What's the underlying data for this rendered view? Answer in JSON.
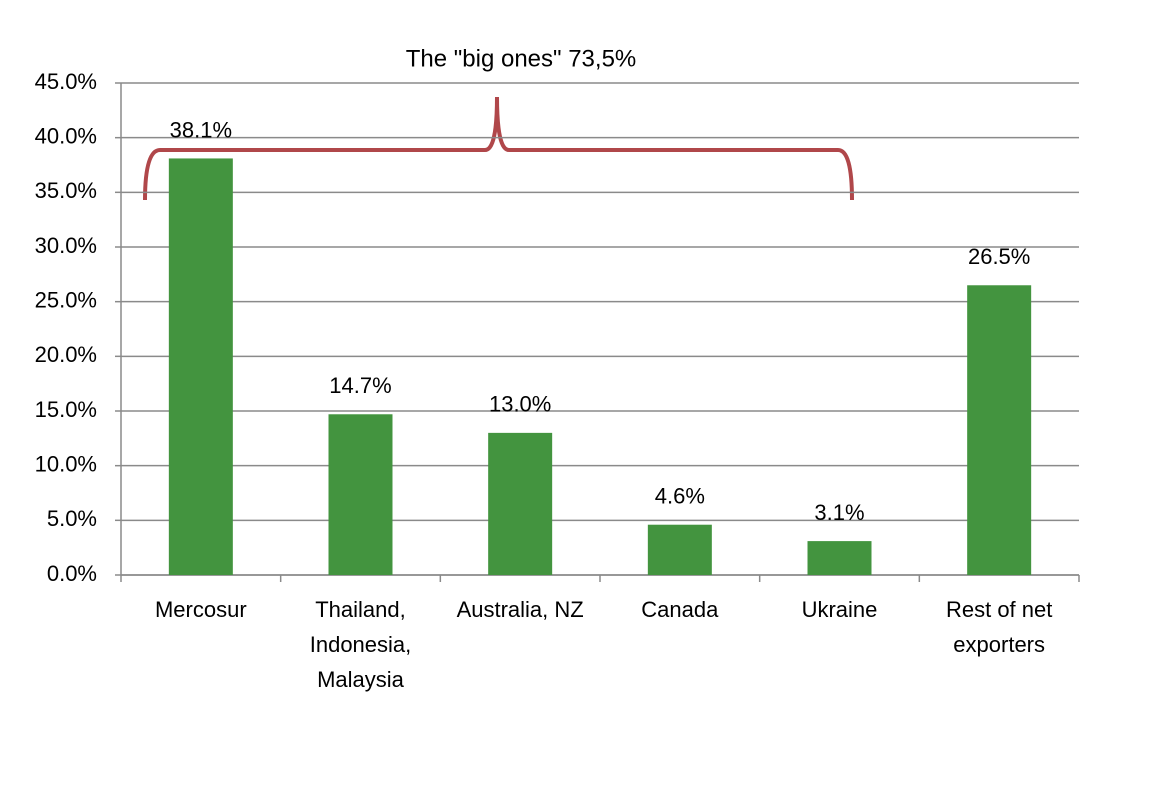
{
  "chart_data": {
    "type": "bar",
    "annotation": "The \"big ones\" 73,5%",
    "categories": [
      [
        "Mercosur"
      ],
      [
        "Thailand,",
        "Indonesia,",
        "Malaysia"
      ],
      [
        "Australia, NZ"
      ],
      [
        "Canada"
      ],
      [
        "Ukraine"
      ],
      [
        "Rest of net",
        "exporters"
      ]
    ],
    "values": [
      38.1,
      14.7,
      13.0,
      4.6,
      3.1,
      26.5
    ],
    "value_labels": [
      "38.1%",
      "14.7%",
      "13.0%",
      "4.6%",
      "3.1%",
      "26.5%"
    ],
    "color": "#43943f",
    "ylim": [
      0,
      45
    ],
    "yticks": [
      {
        "value": 0,
        "label": "0.0%"
      },
      {
        "value": 5,
        "label": "5.0%"
      },
      {
        "value": 10,
        "label": "10.0%"
      },
      {
        "value": 15,
        "label": "15.0%"
      },
      {
        "value": 20,
        "label": "20.0%"
      },
      {
        "value": 25,
        "label": "25.0%"
      },
      {
        "value": 30,
        "label": "30.0%"
      },
      {
        "value": 35,
        "label": "35.0%"
      },
      {
        "value": 40,
        "label": "40.0%"
      },
      {
        "value": 45,
        "label": "45.0%"
      }
    ],
    "grid": true
  }
}
